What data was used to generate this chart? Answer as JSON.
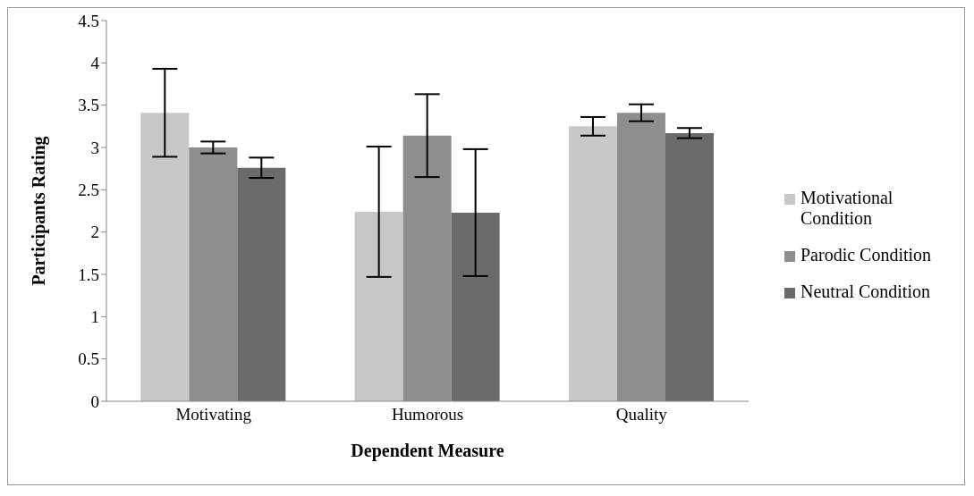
{
  "chart_data": {
    "type": "bar",
    "xlabel": "Dependent Measure",
    "ylabel": "Participants Rating",
    "categories": [
      "Motivating",
      "Humorous",
      "Quality"
    ],
    "series": [
      {
        "name": "Motivational Condition",
        "color": "#c8c8c8",
        "values": [
          3.41,
          2.24,
          3.25
        ],
        "errors": [
          0.52,
          0.77,
          0.11
        ]
      },
      {
        "name": "Parodic Condition",
        "color": "#8e8e8e",
        "values": [
          3.0,
          3.14,
          3.41
        ],
        "errors": [
          0.07,
          0.49,
          0.1
        ]
      },
      {
        "name": "Neutral Condition",
        "color": "#6b6b6b",
        "values": [
          2.76,
          2.23,
          3.17
        ],
        "errors": [
          0.12,
          0.75,
          0.06
        ]
      }
    ],
    "ylim": [
      0,
      4.5
    ],
    "yticks": [
      0,
      0.5,
      1,
      1.5,
      2,
      2.5,
      3,
      3.5,
      4,
      4.5
    ],
    "grid": false,
    "legend": "right"
  }
}
